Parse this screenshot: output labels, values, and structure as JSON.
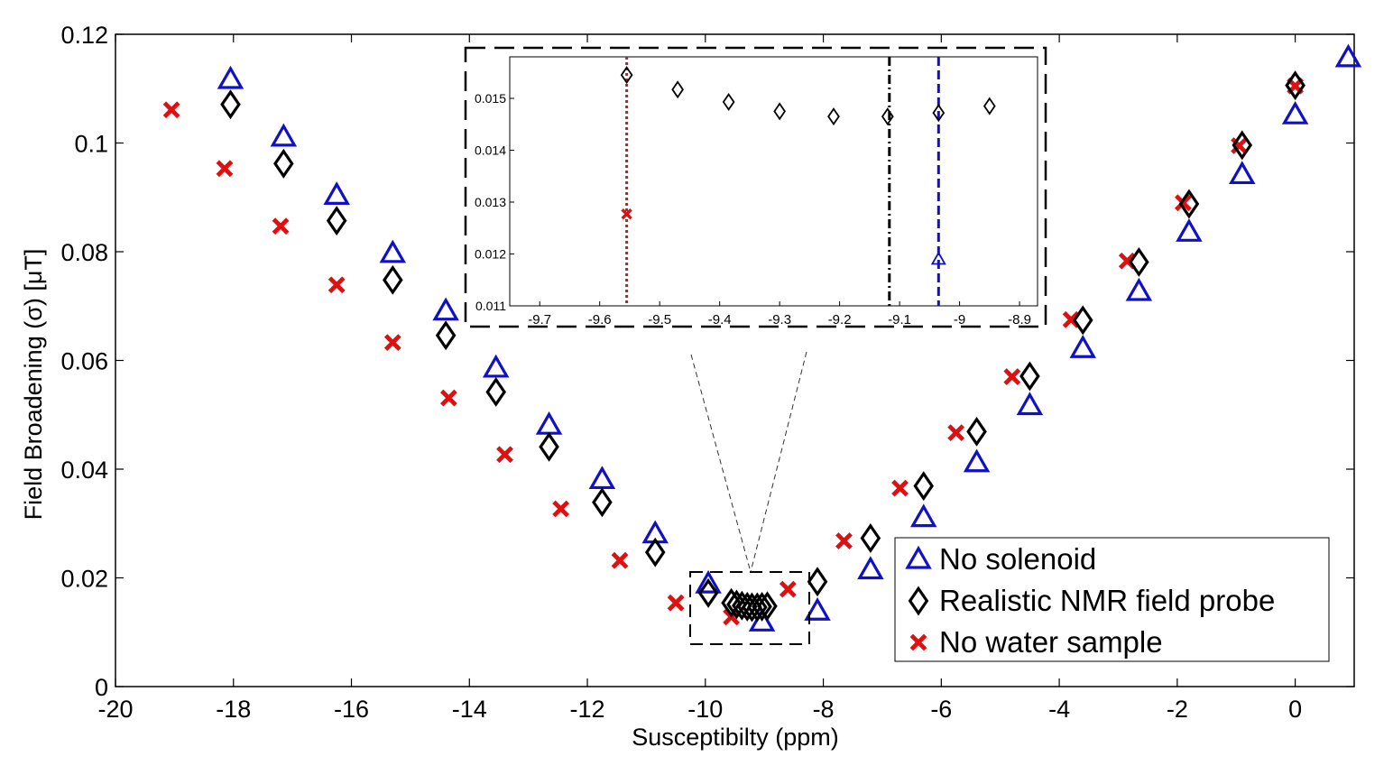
{
  "chart_data": {
    "type": "scatter",
    "title": "",
    "xlabel": "Susceptibilty (ppm)",
    "ylabel": "Field Broadening (σ) [μT]",
    "xlim": [
      -20,
      1
    ],
    "ylim": [
      0,
      0.12
    ],
    "xticks": [
      "-20",
      "-18",
      "-16",
      "-14",
      "-12",
      "-10",
      "-8",
      "-6",
      "-4",
      "-2",
      "0"
    ],
    "yticks": [
      "0",
      "0.02",
      "0.04",
      "0.06",
      "0.08",
      "0.1",
      "0.12"
    ],
    "grid": false,
    "legend_position": "bottom-right",
    "series": [
      {
        "name": "No solenoid",
        "marker": "triangle",
        "color": "#1010c8",
        "x": [
          -18.05,
          -17.15,
          -16.25,
          -15.3,
          -14.4,
          -13.55,
          -12.65,
          -11.75,
          -10.85,
          -9.95,
          -9.04,
          -8.1,
          -7.2,
          -6.3,
          -5.4,
          -4.5,
          -3.6,
          -2.65,
          -1.8,
          -0.9,
          0,
          0.9
        ],
        "y": [
          0.1117,
          0.1011,
          0.0904,
          0.0797,
          0.0691,
          0.0586,
          0.0481,
          0.0381,
          0.0281,
          0.0189,
          0.0119,
          0.0139,
          0.0215,
          0.0311,
          0.0412,
          0.0517,
          0.0622,
          0.0727,
          0.0836,
          0.0942,
          0.1052,
          0.1157
        ]
      },
      {
        "name": "Realistic NMR field probe",
        "marker": "diamond",
        "color": "#000000",
        "x": [
          -18.05,
          -17.15,
          -16.25,
          -15.3,
          -14.4,
          -13.55,
          -12.65,
          -11.75,
          -10.85,
          -9.95,
          -9.56,
          -9.47,
          -9.38,
          -9.29,
          -9.21,
          -9.12,
          -9.04,
          -8.95,
          -8.1,
          -7.2,
          -6.3,
          -5.4,
          -4.5,
          -3.6,
          -2.65,
          -1.8,
          -0.9,
          0
        ],
        "y": [
          0.1071,
          0.0962,
          0.0857,
          0.0748,
          0.0646,
          0.0542,
          0.0441,
          0.0339,
          0.0247,
          0.0172,
          0.0154,
          0.0151,
          0.0149,
          0.0147,
          0.0146,
          0.0146,
          0.0147,
          0.0148,
          0.0193,
          0.0273,
          0.0369,
          0.0469,
          0.0571,
          0.0674,
          0.0781,
          0.0888,
          0.0996,
          0.1106
        ]
      },
      {
        "name": "No water sample",
        "marker": "x",
        "color": "#e01010",
        "x": [
          -19.05,
          -18.15,
          -17.2,
          -16.25,
          -15.3,
          -14.35,
          -13.4,
          -12.45,
          -11.45,
          -10.5,
          -9.56,
          -8.6,
          -7.65,
          -6.7,
          -5.75,
          -4.8,
          -3.8,
          -2.85,
          -1.9,
          -0.95,
          0
        ],
        "y": [
          0.1061,
          0.0953,
          0.0847,
          0.0739,
          0.0633,
          0.0531,
          0.0427,
          0.0327,
          0.0232,
          0.0154,
          0.0128,
          0.0179,
          0.0268,
          0.0365,
          0.0467,
          0.057,
          0.0675,
          0.0783,
          0.089,
          0.0995,
          0.1105
        ]
      }
    ],
    "inset": {
      "xlim": [
        -9.75,
        -8.87
      ],
      "ylim": [
        0.011,
        0.0158
      ],
      "xticks": [
        "-9.7",
        "-9.6",
        "-9.5",
        "-9.4",
        "-9.3",
        "-9.2",
        "-9.1",
        "-9",
        "-8.9"
      ],
      "yticks": [
        "0.011",
        "0.012",
        "0.013",
        "0.014",
        "0.015"
      ],
      "vlines": [
        {
          "x": -9.555,
          "style": "dotted",
          "color": "#e01010"
        },
        {
          "x": -9.117,
          "style": "dashdot",
          "color": "#000000"
        },
        {
          "x": -9.035,
          "style": "dashed",
          "color": "#1010c8"
        }
      ],
      "series": [
        {
          "name": "Realistic NMR field probe",
          "marker": "diamond",
          "color": "#000000",
          "x": [
            -9.555,
            -9.47,
            -9.385,
            -9.3,
            -9.21,
            -9.12,
            -9.035,
            -8.95
          ],
          "y": [
            0.01545,
            0.01517,
            0.01493,
            0.01475,
            0.01465,
            0.01465,
            0.01472,
            0.01485
          ]
        },
        {
          "name": "No solenoid",
          "marker": "triangle",
          "color": "#1010c8",
          "x": [
            -9.035
          ],
          "y": [
            0.0119
          ]
        },
        {
          "name": "No water sample",
          "marker": "x",
          "color": "#e01010",
          "x": [
            -9.555
          ],
          "y": [
            0.01277
          ]
        }
      ]
    }
  }
}
